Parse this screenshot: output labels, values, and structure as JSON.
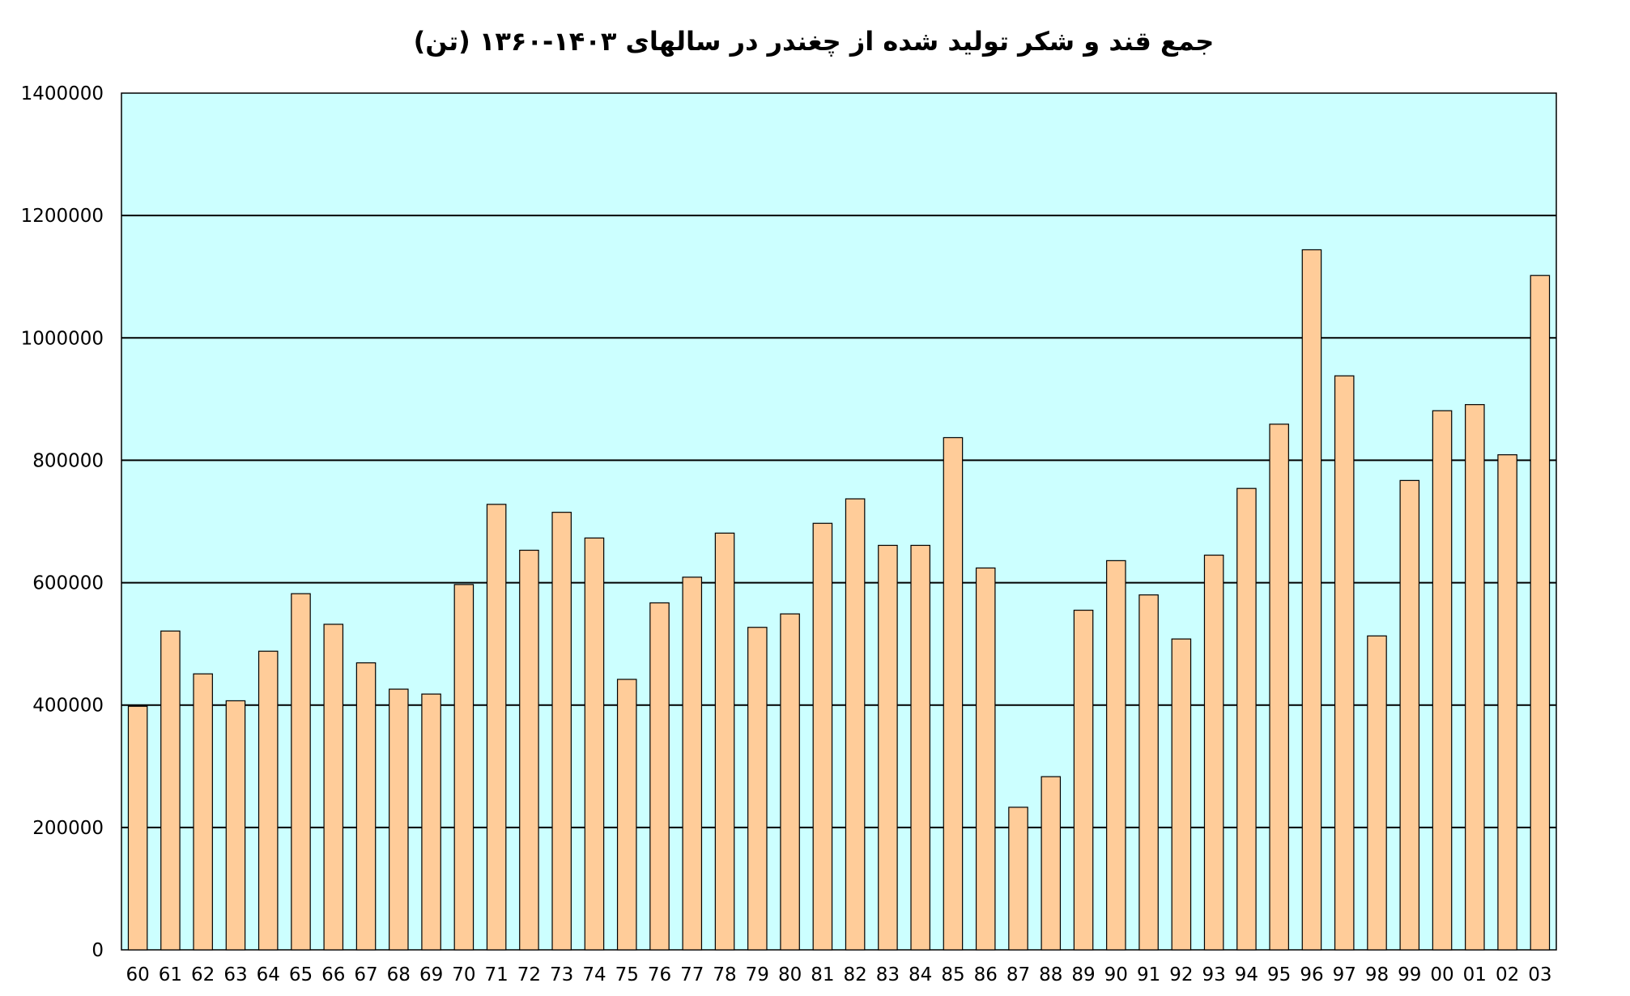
{
  "chart_data": {
    "type": "bar",
    "title": "جمع قند و شکر تولید شده از چغندر در سالهای ۱۴۰۳-۱۳۶۰ (تن)",
    "xlabel": "",
    "ylabel": "",
    "ylim": [
      0,
      1400000
    ],
    "yticks": [
      "0",
      "200000",
      "400000",
      "600000",
      "800000",
      "1000000",
      "1200000",
      "1400000"
    ],
    "grid": true,
    "legend": "none",
    "categories": [
      "60",
      "61",
      "62",
      "63",
      "64",
      "65",
      "66",
      "67",
      "68",
      "69",
      "70",
      "71",
      "72",
      "73",
      "74",
      "75",
      "76",
      "77",
      "78",
      "79",
      "80",
      "81",
      "82",
      "83",
      "84",
      "85",
      "86",
      "87",
      "88",
      "89",
      "90",
      "91",
      "92",
      "93",
      "94",
      "95",
      "96",
      "97",
      "98",
      "99",
      "00",
      "01",
      "02",
      "03"
    ],
    "values": [
      398000,
      521000,
      451000,
      407000,
      488000,
      582000,
      532000,
      469000,
      426000,
      418000,
      597000,
      728000,
      653000,
      715000,
      673000,
      442000,
      567000,
      609000,
      681000,
      527000,
      549000,
      697000,
      737000,
      661000,
      661000,
      837000,
      624000,
      233000,
      283000,
      555000,
      636000,
      580000,
      508000,
      645000,
      754000,
      859000,
      1144000,
      938000,
      513000,
      767000,
      881000,
      891000,
      809000,
      1102000
    ],
    "colors": {
      "plot_background": "#ccffff",
      "bar_fill": "#ffcc99",
      "bar_stroke": "#000000",
      "grid_line": "#000000"
    }
  }
}
